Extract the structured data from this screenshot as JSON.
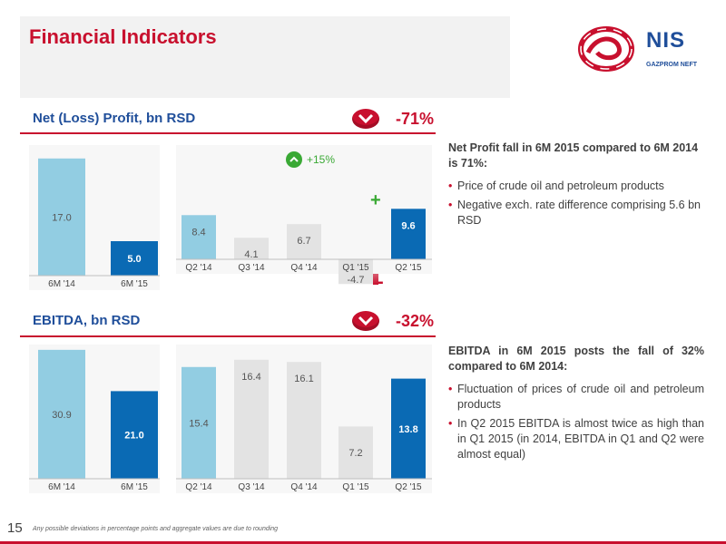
{
  "page": {
    "title": "Financial Indicators",
    "number": "15",
    "footnote": "Any possible deviations in percentage points and aggregate values are due to rounding"
  },
  "logo": {
    "name": "NIS",
    "sub": "GAZPROM NEFT"
  },
  "colors": {
    "red": "#c8102e",
    "blue_dark": "#0a6ab4",
    "blue_light": "#92cde2",
    "grey_bar": "#e3e3e3",
    "green": "#3aa935",
    "navy": "#1f4e9a"
  },
  "sections": {
    "net_profit": {
      "title": "Net (Loss) Profit, bn RSD",
      "change": "-71%",
      "growth_label": "+15%",
      "plus_sign": "+",
      "minus_sign": "-",
      "comment": {
        "head": "Net Profit fall in 6M 2015 compared to 6M 2014 is  71%:",
        "bullets": [
          "Price of crude oil and petroleum products",
          "Negative exch. rate difference comprising 5.6 bn RSD"
        ]
      }
    },
    "ebitda": {
      "title": "EBITDA, bn RSD",
      "change": "-32%",
      "comment": {
        "head": "EBITDA in 6M 2015 posts the fall of 32% compared to 6M 2014:",
        "bullets": [
          "Fluctuation of prices of crude oil and petroleum products",
          "In Q2 2015 EBITDA is almost twice as high than in Q1 2015 (in 2014, EBITDA in Q1 and Q2 were almost equal)"
        ]
      }
    }
  },
  "chart_data": [
    {
      "type": "bar",
      "title": "Net (Loss) Profit, bn RSD",
      "group": "half-year",
      "categories": [
        "6M '14",
        "6M '15"
      ],
      "values": [
        17.0,
        5.0
      ],
      "labels": [
        "17.0",
        "5.0"
      ]
    },
    {
      "type": "bar",
      "title": "Net (Loss) Profit, bn RSD",
      "group": "quarterly",
      "categories": [
        "Q2 '14",
        "Q3 '14",
        "Q4 '14",
        "Q1 '15",
        "Q2 '15"
      ],
      "values": [
        8.4,
        4.1,
        6.7,
        -4.7,
        9.6
      ],
      "labels": [
        "8.4",
        "4.1",
        "6.7",
        "-4.7",
        "9.6"
      ]
    },
    {
      "type": "bar",
      "title": "EBITDA, bn RSD",
      "group": "half-year",
      "categories": [
        "6M '14",
        "6M '15"
      ],
      "values": [
        30.9,
        21.0
      ],
      "labels": [
        "30.9",
        "21.0"
      ]
    },
    {
      "type": "bar",
      "title": "EBITDA, bn RSD",
      "group": "quarterly",
      "categories": [
        "Q2 '14",
        "Q3 '14",
        "Q4 '14",
        "Q1 '15",
        "Q2 '15"
      ],
      "values": [
        15.4,
        16.4,
        16.1,
        7.2,
        13.8
      ],
      "labels": [
        "15.4",
        "16.4",
        "16.1",
        "7.2",
        "13.8"
      ]
    }
  ]
}
